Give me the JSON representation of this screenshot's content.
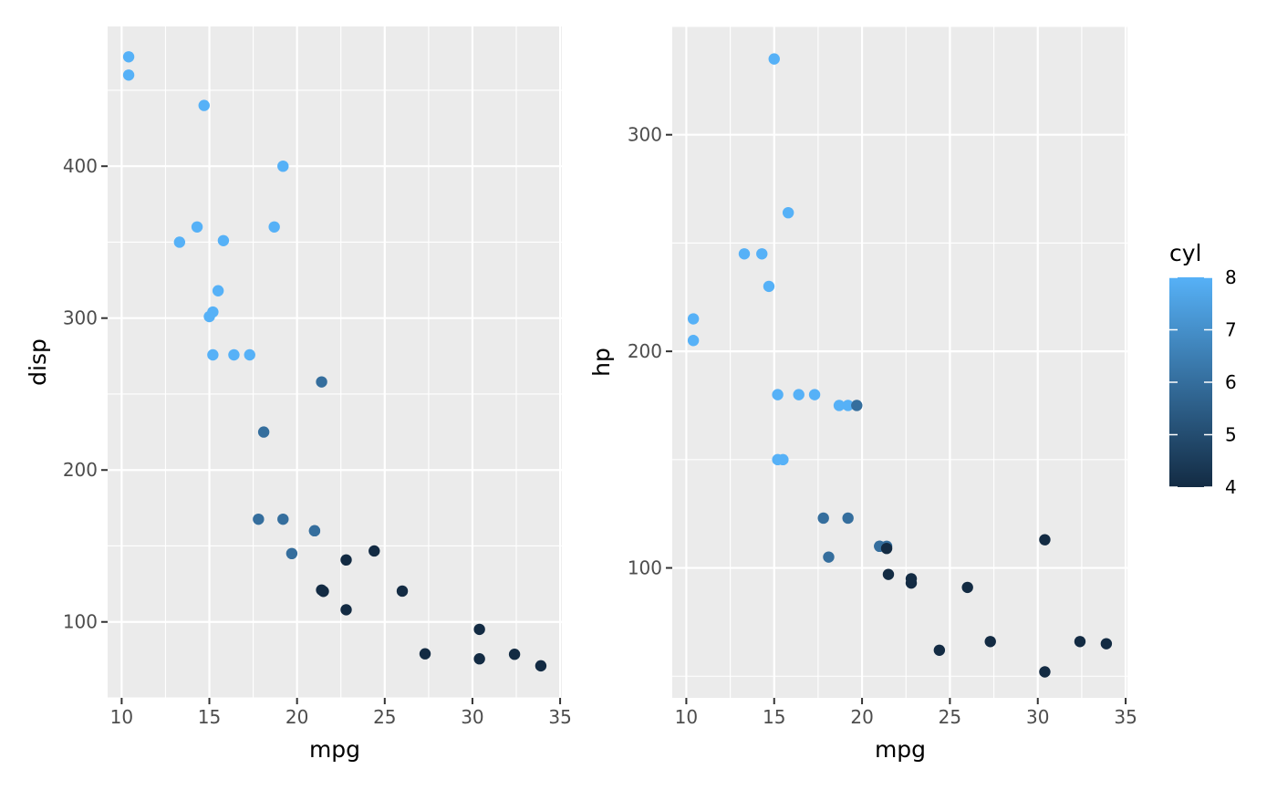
{
  "colors": {
    "panel_bg": "#EBEBEB",
    "grid": "#FFFFFF",
    "tick": "#333333",
    "low": "#132B43",
    "high": "#56B1F7"
  },
  "chart_data": [
    {
      "type": "scatter",
      "xlabel": "mpg",
      "ylabel": "disp",
      "xlim": [
        9.2,
        35.1
      ],
      "ylim": [
        50.0,
        492.0
      ],
      "x_ticks": [
        10,
        15,
        20,
        25,
        30,
        35
      ],
      "x_tick_labels": [
        "10",
        "15",
        "20",
        "25",
        "30",
        "35"
      ],
      "y_ticks": [
        100,
        200,
        300,
        400
      ],
      "y_tick_labels": [
        "100",
        "200",
        "300",
        "400"
      ],
      "color_by": "cyl",
      "points": [
        {
          "x": 21.0,
          "y": 160,
          "cyl": 6
        },
        {
          "x": 21.0,
          "y": 160,
          "cyl": 6
        },
        {
          "x": 22.8,
          "y": 108,
          "cyl": 4
        },
        {
          "x": 21.4,
          "y": 258,
          "cyl": 6
        },
        {
          "x": 18.7,
          "y": 360,
          "cyl": 8
        },
        {
          "x": 18.1,
          "y": 225,
          "cyl": 6
        },
        {
          "x": 14.3,
          "y": 360,
          "cyl": 8
        },
        {
          "x": 24.4,
          "y": 146.7,
          "cyl": 4
        },
        {
          "x": 22.8,
          "y": 140.8,
          "cyl": 4
        },
        {
          "x": 19.2,
          "y": 167.6,
          "cyl": 6
        },
        {
          "x": 17.8,
          "y": 167.6,
          "cyl": 6
        },
        {
          "x": 16.4,
          "y": 275.8,
          "cyl": 8
        },
        {
          "x": 17.3,
          "y": 275.8,
          "cyl": 8
        },
        {
          "x": 15.2,
          "y": 275.8,
          "cyl": 8
        },
        {
          "x": 10.4,
          "y": 472,
          "cyl": 8
        },
        {
          "x": 10.4,
          "y": 460,
          "cyl": 8
        },
        {
          "x": 14.7,
          "y": 440,
          "cyl": 8
        },
        {
          "x": 32.4,
          "y": 78.7,
          "cyl": 4
        },
        {
          "x": 30.4,
          "y": 75.7,
          "cyl": 4
        },
        {
          "x": 33.9,
          "y": 71.1,
          "cyl": 4
        },
        {
          "x": 21.5,
          "y": 120.1,
          "cyl": 4
        },
        {
          "x": 15.5,
          "y": 318,
          "cyl": 8
        },
        {
          "x": 15.2,
          "y": 304,
          "cyl": 8
        },
        {
          "x": 13.3,
          "y": 350,
          "cyl": 8
        },
        {
          "x": 19.2,
          "y": 400,
          "cyl": 8
        },
        {
          "x": 27.3,
          "y": 79,
          "cyl": 4
        },
        {
          "x": 26.0,
          "y": 120.3,
          "cyl": 4
        },
        {
          "x": 30.4,
          "y": 95.1,
          "cyl": 4
        },
        {
          "x": 15.8,
          "y": 351,
          "cyl": 8
        },
        {
          "x": 19.7,
          "y": 145,
          "cyl": 6
        },
        {
          "x": 15.0,
          "y": 301,
          "cyl": 8
        },
        {
          "x": 21.4,
          "y": 121,
          "cyl": 4
        }
      ]
    },
    {
      "type": "scatter",
      "xlabel": "mpg",
      "ylabel": "hp",
      "xlim": [
        9.2,
        35.1
      ],
      "ylim": [
        40.0,
        350.0
      ],
      "x_ticks": [
        10,
        15,
        20,
        25,
        30,
        35
      ],
      "x_tick_labels": [
        "10",
        "15",
        "20",
        "25",
        "30",
        "35"
      ],
      "y_ticks": [
        100,
        200,
        300
      ],
      "y_tick_labels": [
        "100",
        "200",
        "300"
      ],
      "color_by": "cyl",
      "points": [
        {
          "x": 21.0,
          "y": 110,
          "cyl": 6
        },
        {
          "x": 21.0,
          "y": 110,
          "cyl": 6
        },
        {
          "x": 22.8,
          "y": 93,
          "cyl": 4
        },
        {
          "x": 21.4,
          "y": 110,
          "cyl": 6
        },
        {
          "x": 18.7,
          "y": 175,
          "cyl": 8
        },
        {
          "x": 18.1,
          "y": 105,
          "cyl": 6
        },
        {
          "x": 14.3,
          "y": 245,
          "cyl": 8
        },
        {
          "x": 24.4,
          "y": 62,
          "cyl": 4
        },
        {
          "x": 22.8,
          "y": 95,
          "cyl": 4
        },
        {
          "x": 19.2,
          "y": 123,
          "cyl": 6
        },
        {
          "x": 17.8,
          "y": 123,
          "cyl": 6
        },
        {
          "x": 16.4,
          "y": 180,
          "cyl": 8
        },
        {
          "x": 17.3,
          "y": 180,
          "cyl": 8
        },
        {
          "x": 15.2,
          "y": 180,
          "cyl": 8
        },
        {
          "x": 10.4,
          "y": 205,
          "cyl": 8
        },
        {
          "x": 10.4,
          "y": 215,
          "cyl": 8
        },
        {
          "x": 14.7,
          "y": 230,
          "cyl": 8
        },
        {
          "x": 32.4,
          "y": 66,
          "cyl": 4
        },
        {
          "x": 30.4,
          "y": 52,
          "cyl": 4
        },
        {
          "x": 33.9,
          "y": 65,
          "cyl": 4
        },
        {
          "x": 21.5,
          "y": 97,
          "cyl": 4
        },
        {
          "x": 15.5,
          "y": 150,
          "cyl": 8
        },
        {
          "x": 15.2,
          "y": 150,
          "cyl": 8
        },
        {
          "x": 13.3,
          "y": 245,
          "cyl": 8
        },
        {
          "x": 19.2,
          "y": 175,
          "cyl": 8
        },
        {
          "x": 27.3,
          "y": 66,
          "cyl": 4
        },
        {
          "x": 26.0,
          "y": 91,
          "cyl": 4
        },
        {
          "x": 30.4,
          "y": 113,
          "cyl": 4
        },
        {
          "x": 15.8,
          "y": 264,
          "cyl": 8
        },
        {
          "x": 19.7,
          "y": 175,
          "cyl": 6
        },
        {
          "x": 15.0,
          "y": 335,
          "cyl": 8
        },
        {
          "x": 21.4,
          "y": 109,
          "cyl": 4
        }
      ]
    }
  ],
  "legend": {
    "title": "cyl",
    "range": [
      4,
      8
    ],
    "ticks": [
      4,
      5,
      6,
      7,
      8
    ],
    "tick_labels": [
      "4",
      "5",
      "6",
      "7",
      "8"
    ],
    "placement": "right"
  }
}
